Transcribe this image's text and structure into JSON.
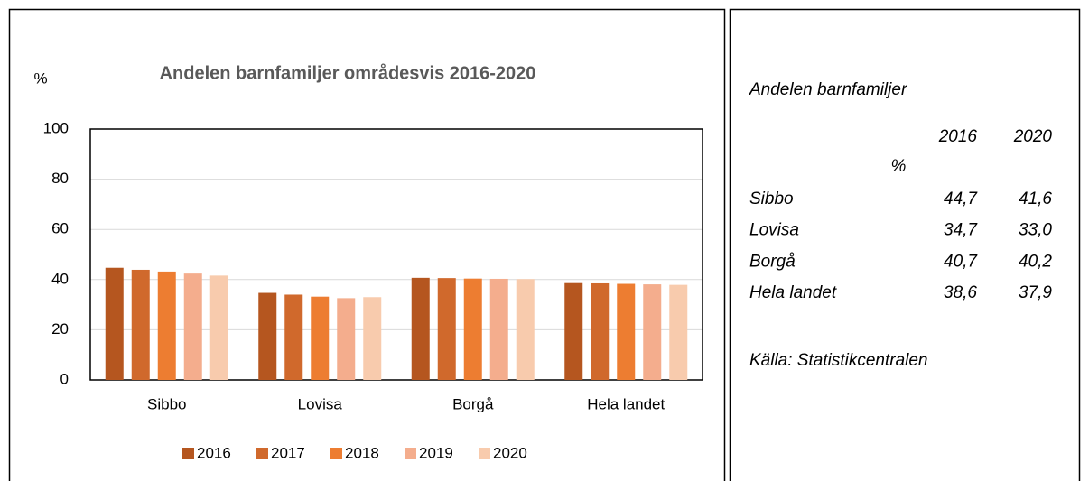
{
  "chart_data": {
    "type": "bar",
    "title": "Andelen barnfamiljer områdesvis 2016-2020",
    "y_label": "%",
    "categories": [
      "Sibbo",
      "Lovisa",
      "Borgå",
      "Hela landet"
    ],
    "series": [
      {
        "name": "2016",
        "color": "#b5561f",
        "values": [
          44.7,
          34.7,
          40.7,
          38.6
        ]
      },
      {
        "name": "2017",
        "color": "#d0692c",
        "values": [
          43.9,
          34.0,
          40.6,
          38.5
        ]
      },
      {
        "name": "2018",
        "color": "#ed7d31",
        "values": [
          43.2,
          33.2,
          40.4,
          38.3
        ]
      },
      {
        "name": "2019",
        "color": "#f4ad8d",
        "values": [
          42.4,
          32.6,
          40.3,
          38.1
        ]
      },
      {
        "name": "2020",
        "color": "#f8cbad",
        "values": [
          41.6,
          33.0,
          40.2,
          37.9
        ]
      }
    ],
    "ylim": [
      0,
      100
    ],
    "yticks": [
      0,
      20,
      40,
      60,
      80,
      100
    ],
    "grid": true,
    "legend": "bottom"
  },
  "side_table": {
    "title": "Andelen barnfamiljer",
    "columns": [
      "2016",
      "2020"
    ],
    "unit": "%",
    "rows": [
      [
        "Sibbo",
        "44,7",
        "41,6"
      ],
      [
        "Lovisa",
        "34,7",
        "33,0"
      ],
      [
        "Borgå",
        "40,7",
        "40,2"
      ],
      [
        "Hela landet",
        "38,6",
        "37,9"
      ]
    ],
    "source": "Källa: Statistikcentralen"
  }
}
